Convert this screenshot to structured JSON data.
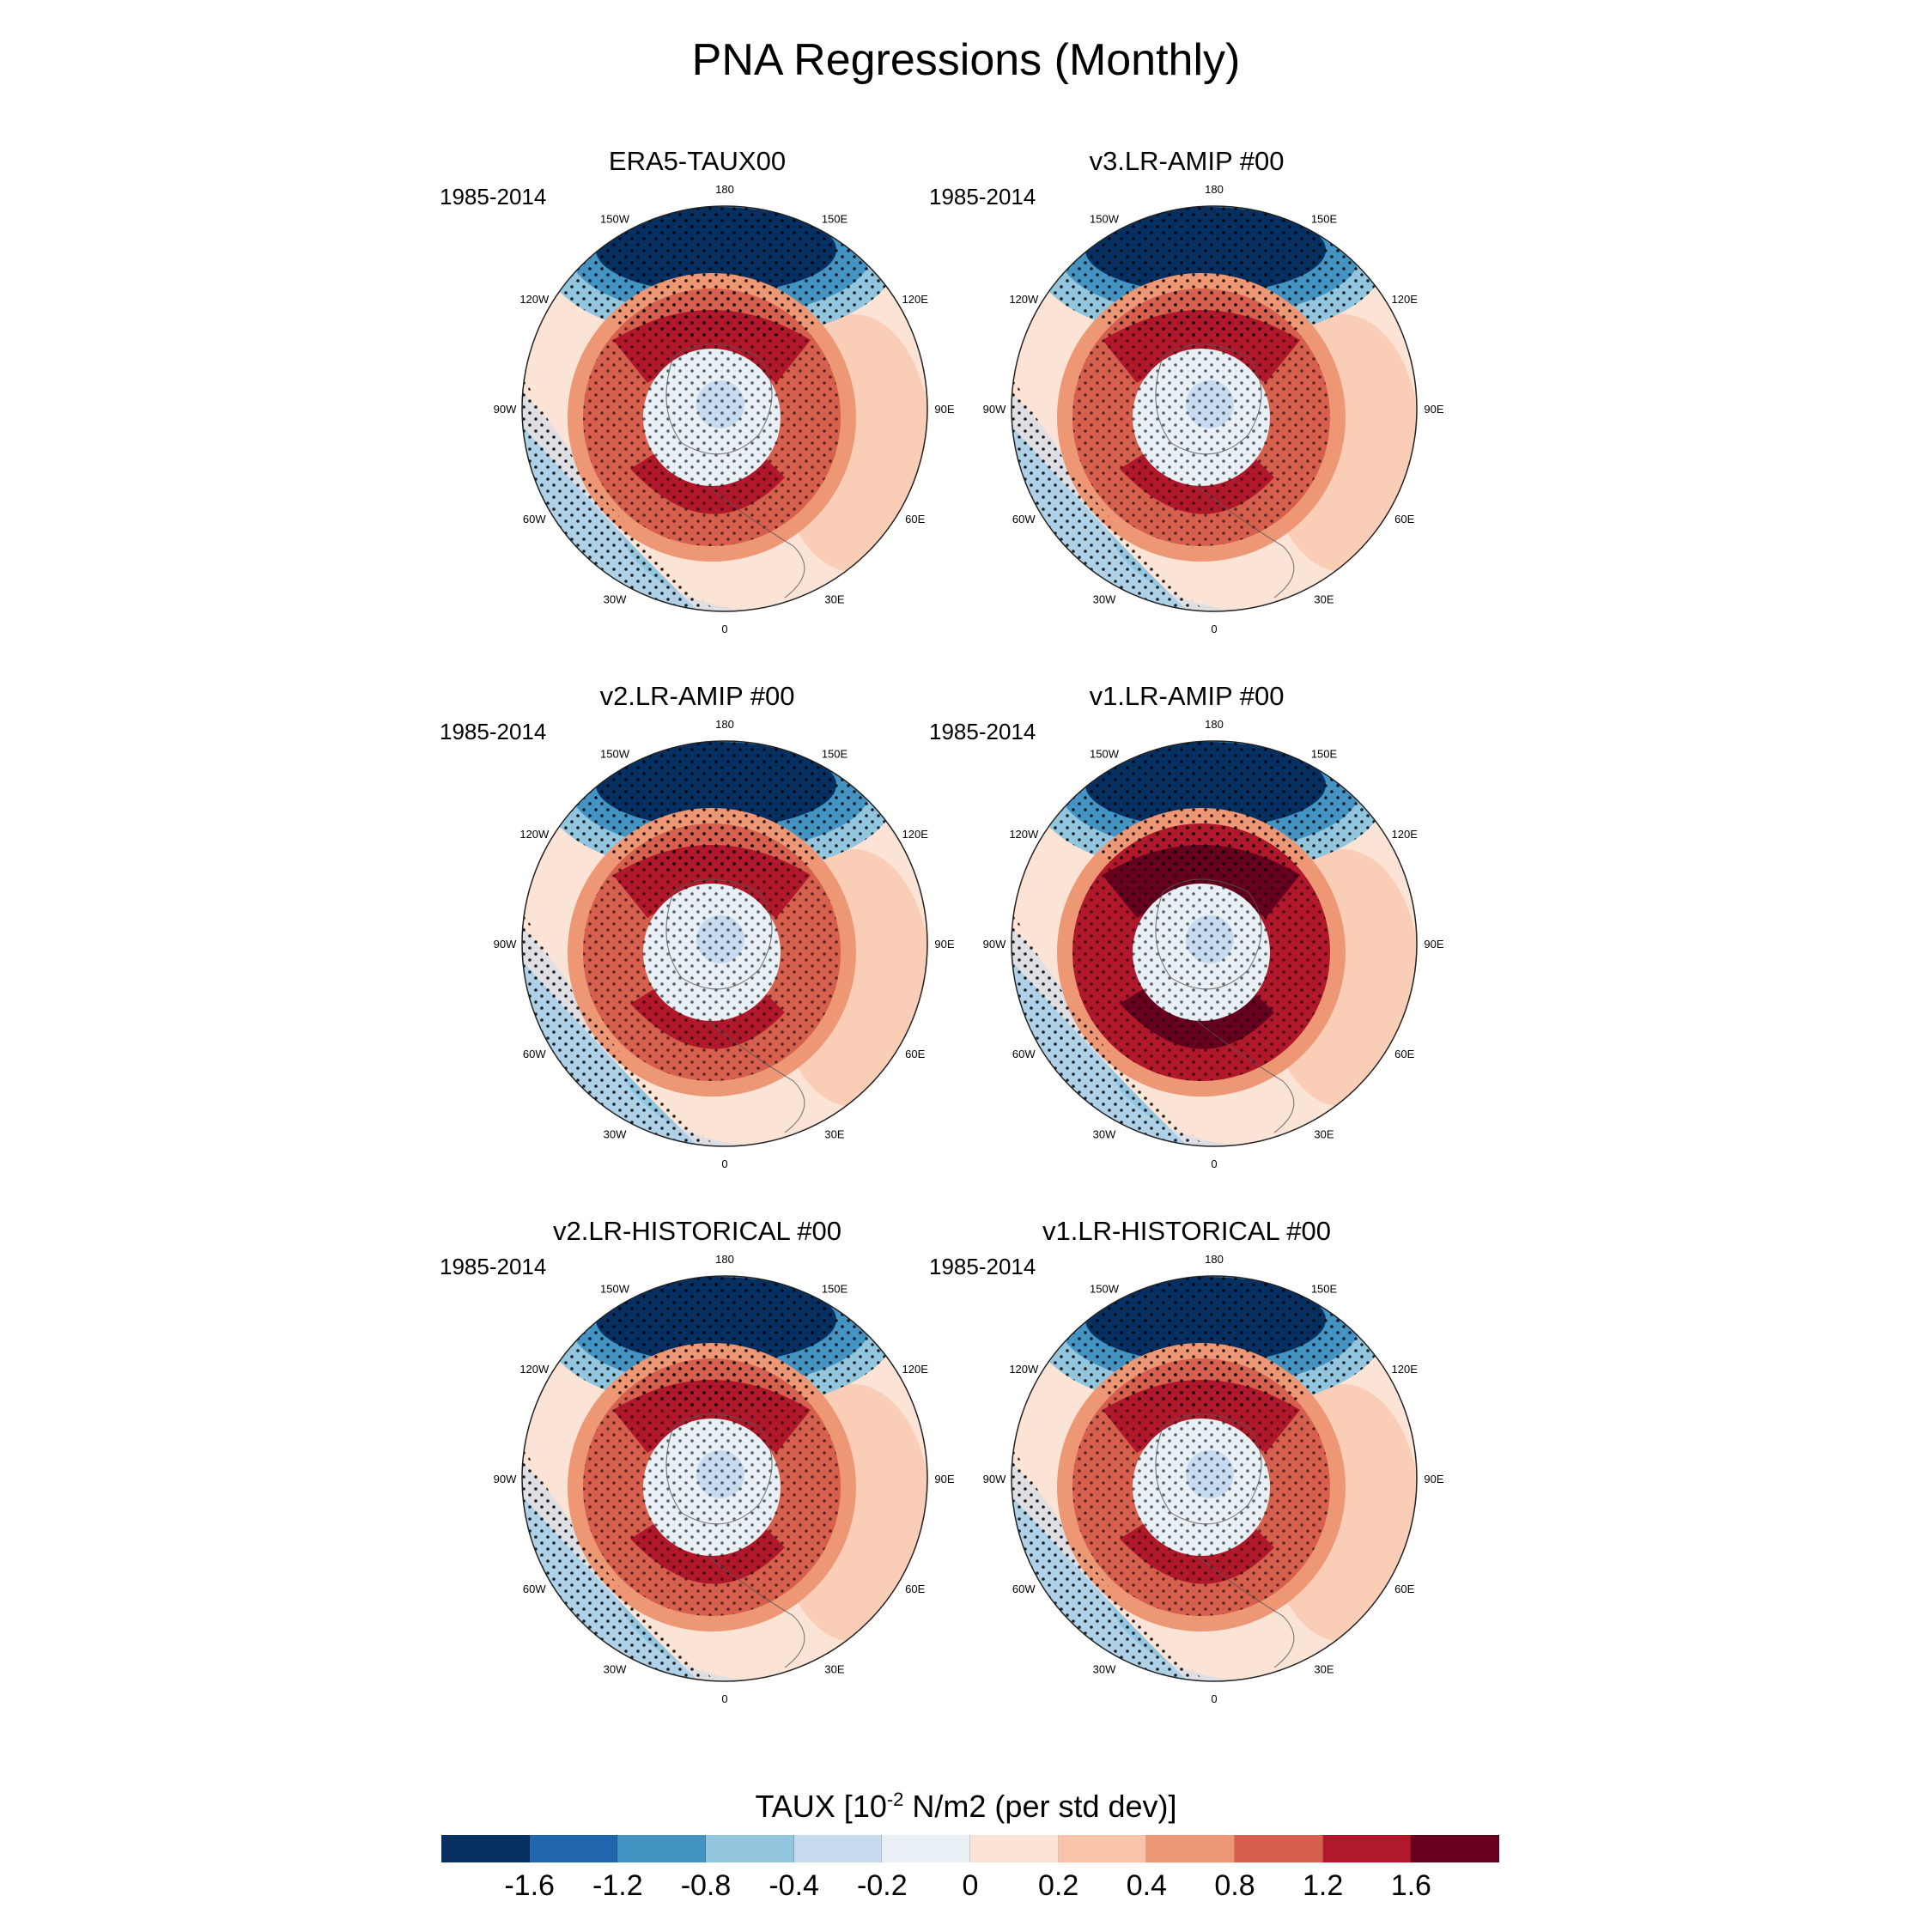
{
  "title": "PNA Regressions (Monthly)",
  "chart_data": {
    "type": "heatmap",
    "title": "PNA Regressions (Monthly)",
    "projection": "north polar stereographic",
    "variable": "TAUX",
    "colorbar": {
      "label_prefix": "TAUX [10",
      "label_exponent": "-2",
      "label_suffix": " N/m2 (per std dev)]",
      "levels": [
        "-1.6",
        "-1.2",
        "-0.8",
        "-0.4",
        "-0.2",
        "0",
        "0.2",
        "0.4",
        "0.8",
        "1.2",
        "1.6"
      ],
      "colors": [
        "#053061",
        "#2166ac",
        "#4393c3",
        "#92c5de",
        "#c6dbef",
        "#e8eff5",
        "#fbe3d6",
        "#f8c3a8",
        "#ee9775",
        "#d6604d",
        "#b2182b",
        "#67001f"
      ]
    },
    "longitude_labels": [
      "180",
      "150E",
      "120E",
      "90E",
      "60E",
      "30E",
      "0",
      "30W",
      "60W",
      "90W",
      "120W",
      "150W"
    ],
    "panels": [
      {
        "title": "ERA5-TAUX00",
        "period": "1985-2014",
        "north_pacific_low": -1.7,
        "midlat_ring": 1.3,
        "atlantic": -0.5,
        "polar": -0.1
      },
      {
        "title": "v3.LR-AMIP  #00",
        "period": "1985-2014",
        "north_pacific_low": -1.8,
        "midlat_ring": 1.4,
        "atlantic": -0.6,
        "polar": -0.1
      },
      {
        "title": "v2.LR-AMIP  #00",
        "period": "1985-2014",
        "north_pacific_low": -1.7,
        "midlat_ring": 1.2,
        "atlantic": -0.6,
        "polar": -0.2
      },
      {
        "title": "v1.LR-AMIP  #00",
        "period": "1985-2014",
        "north_pacific_low": -1.8,
        "midlat_ring": 1.7,
        "atlantic": -0.6,
        "polar": -0.1
      },
      {
        "title": "v2.LR-HISTORICAL  #00",
        "period": "1985-2014",
        "north_pacific_low": -1.8,
        "midlat_ring": 1.5,
        "atlantic": -0.8,
        "polar": -0.1
      },
      {
        "title": "v1.LR-HISTORICAL  #00",
        "period": "1985-2014",
        "north_pacific_low": -1.8,
        "midlat_ring": 1.4,
        "atlantic": -0.7,
        "polar": -0.1
      }
    ]
  }
}
